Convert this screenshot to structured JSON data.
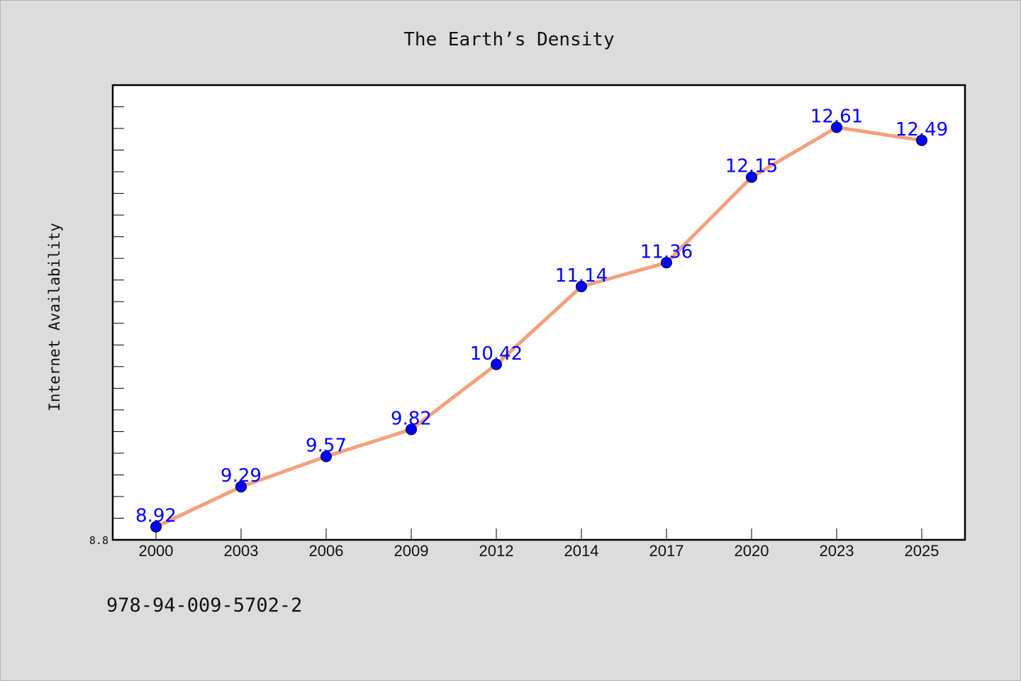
{
  "footer": {
    "code": "978-94-009-5702-2"
  },
  "chart_data": {
    "type": "line",
    "title": "The Earth’s Density",
    "xlabel": "",
    "ylabel": "Internet Availability",
    "categories": [
      "2000",
      "2003",
      "2006",
      "2009",
      "2012",
      "2014",
      "2017",
      "2020",
      "2023",
      "2025"
    ],
    "series": [
      {
        "values": [
          8.92,
          9.29,
          9.57,
          9.82,
          10.42,
          11.14,
          11.36,
          12.15,
          12.61,
          12.49
        ]
      }
    ],
    "data_labels": [
      "8.92",
      "9.29",
      "9.57",
      "9.82",
      "10.42",
      "11.14",
      "11.36",
      "12.15",
      "12.61",
      "12.49"
    ],
    "ylim": [
      8.8,
      13.0
    ],
    "yticks_labeled": [
      "8.8"
    ],
    "grid": false,
    "legend": "none",
    "colors": {
      "line": "#f4a07e",
      "marker": "#0000ff",
      "data_label": "#0000ff",
      "plot_bg": "#ffffff",
      "page_bg": "#dcdcdc"
    }
  }
}
